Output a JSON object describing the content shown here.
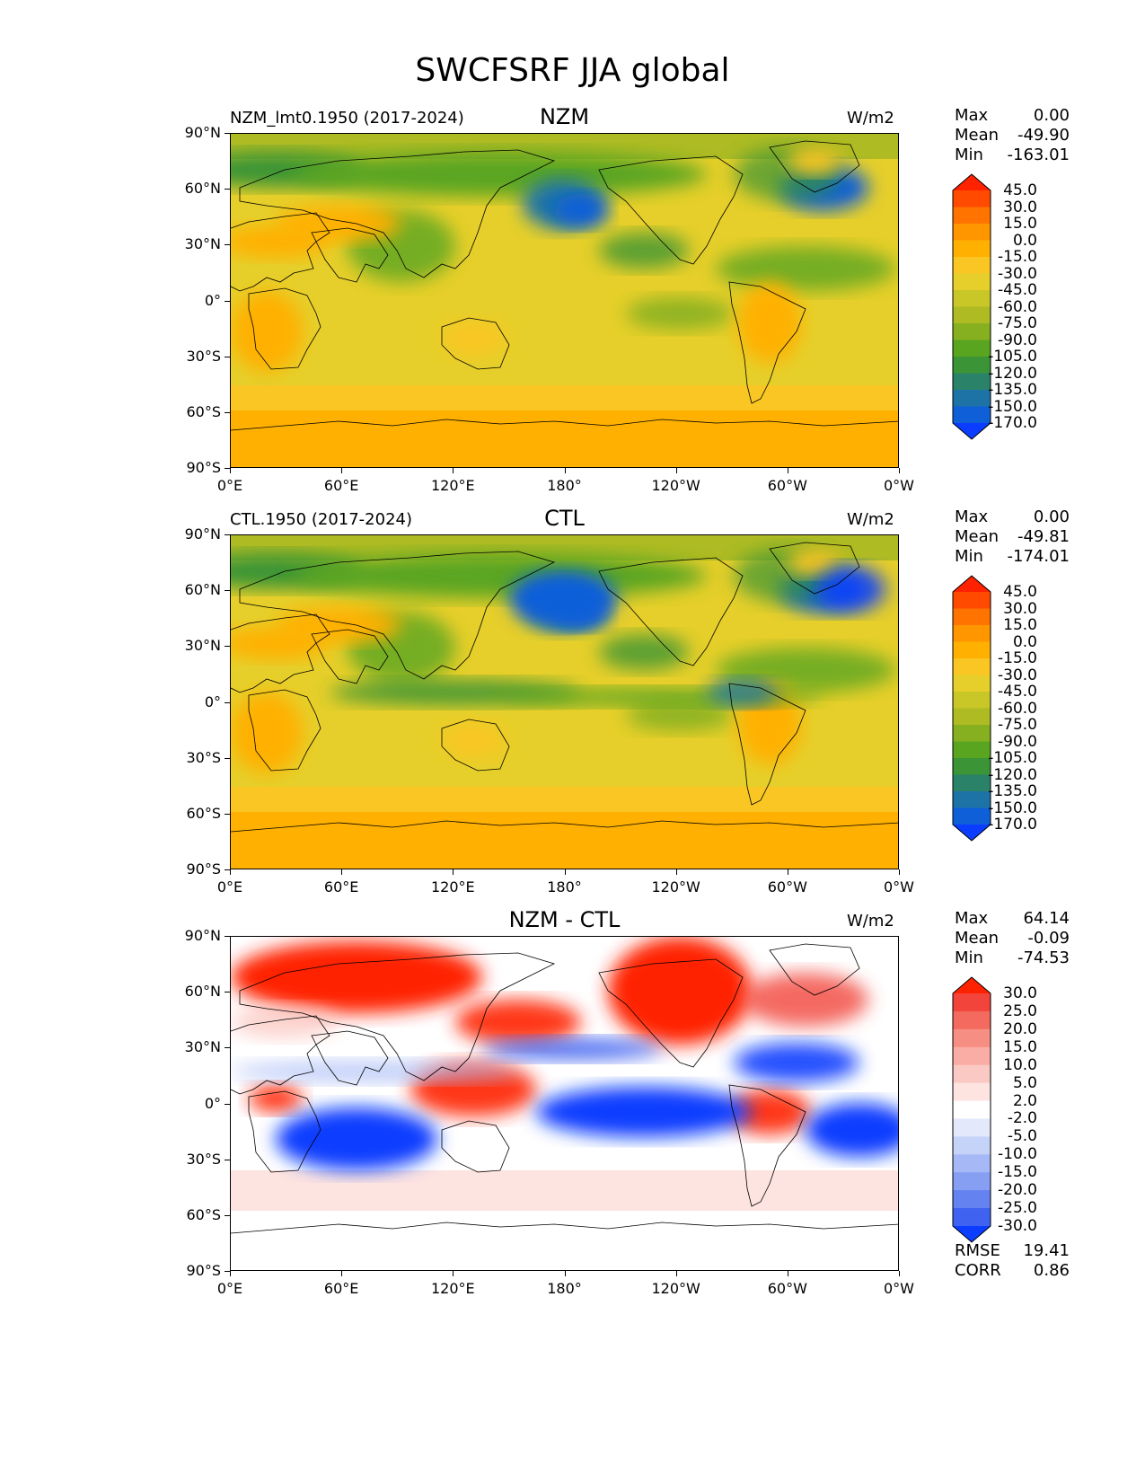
{
  "chart_data": {
    "title": "SWCFSRF JJA global",
    "type": "heatmap",
    "x_ticks": [
      "0°E",
      "60°E",
      "120°E",
      "180°",
      "120°W",
      "60°W",
      "0°W"
    ],
    "y_ticks": [
      "90°N",
      "60°N",
      "30°N",
      "0°",
      "30°S",
      "60°S",
      "90°S"
    ],
    "panels": [
      {
        "id": "nzm",
        "left_label": "NZM_lmt0.1950 (2017-2024)",
        "center_label": "NZM",
        "units": "W/m2",
        "stats": [
          {
            "label": "Max",
            "value": "0.00"
          },
          {
            "label": "Mean",
            "value": "-49.90"
          },
          {
            "label": "Min",
            "value": "-163.01"
          }
        ],
        "colorbar": {
          "levels": [
            "45.0",
            "30.0",
            "15.0",
            "0.0",
            "-15.0",
            "-30.0",
            "-45.0",
            "-60.0",
            "-75.0",
            "-90.0",
            "-105.0",
            "-120.0",
            "-135.0",
            "-150.0",
            "-170.0"
          ],
          "colors": [
            "#ff2200",
            "#ff4a00",
            "#ff7300",
            "#ff9600",
            "#ffb000",
            "#f9c623",
            "#e6cf2a",
            "#c9c627",
            "#aebb23",
            "#86b020",
            "#5aa520",
            "#3b9436",
            "#2a8268",
            "#1d73a6",
            "#0f5fd9",
            "#0a3dff"
          ]
        }
      },
      {
        "id": "ctl",
        "left_label": "CTL.1950 (2017-2024)",
        "center_label": "CTL",
        "units": "W/m2",
        "stats": [
          {
            "label": "Max",
            "value": "0.00"
          },
          {
            "label": "Mean",
            "value": "-49.81"
          },
          {
            "label": "Min",
            "value": "-174.01"
          }
        ],
        "colorbar": {
          "levels": [
            "45.0",
            "30.0",
            "15.0",
            "0.0",
            "-15.0",
            "-30.0",
            "-45.0",
            "-60.0",
            "-75.0",
            "-90.0",
            "-105.0",
            "-120.0",
            "-135.0",
            "-150.0",
            "-170.0"
          ],
          "colors": [
            "#ff2200",
            "#ff4a00",
            "#ff7300",
            "#ff9600",
            "#ffb000",
            "#f9c623",
            "#e6cf2a",
            "#c9c627",
            "#aebb23",
            "#86b020",
            "#5aa520",
            "#3b9436",
            "#2a8268",
            "#1d73a6",
            "#0f5fd9",
            "#0a3dff"
          ]
        }
      },
      {
        "id": "diff",
        "left_label": "",
        "center_label": "NZM - CTL",
        "units": "W/m2",
        "stats": [
          {
            "label": "Max",
            "value": "64.14"
          },
          {
            "label": "Mean",
            "value": "-0.09"
          },
          {
            "label": "Min",
            "value": "-74.53"
          }
        ],
        "footer": [
          {
            "label": "RMSE",
            "value": "19.41"
          },
          {
            "label": "CORR",
            "value": "0.86"
          }
        ],
        "colorbar": {
          "levels": [
            "30.0",
            "25.0",
            "20.0",
            "15.0",
            "10.0",
            "5.0",
            "2.0",
            "-2.0",
            "-5.0",
            "-10.0",
            "-15.0",
            "-20.0",
            "-25.0",
            "-30.0"
          ],
          "colors": [
            "#ff2200",
            "#f2443a",
            "#f46a5e",
            "#f78e83",
            "#f9ada4",
            "#fbc9c3",
            "#fde4e1",
            "#ffffff",
            "#e3e9fb",
            "#c6d3f9",
            "#a6b9f6",
            "#869ff3",
            "#6482f0",
            "#3f62f0",
            "#0a3dff"
          ]
        }
      }
    ]
  }
}
